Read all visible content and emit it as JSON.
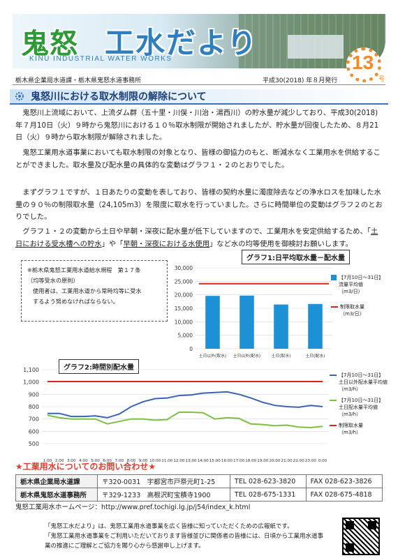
{
  "header": {
    "title_oni": "鬼怒",
    "title_main": "工水だより",
    "subtitle_en": "KINU INDUSTRIAL WATER WORKS",
    "issue_number": "13",
    "issue_unit": "号"
  },
  "meta": {
    "publisher": "栃木県企業局水道課・栃木県鬼怒水道事務所",
    "date": "平成30(2018) 年８月発行"
  },
  "section": {
    "heading": "鬼怒川における取水制限の解除について"
  },
  "paragraphs": {
    "p1": "鬼怒川上流域において、上流ダム群（五十里・川俣・川治・湯西川）の貯水量が減少しており、平成30(2018)年７月10日（火）９時から鬼怒川における１０％取水制限が開始されましたが、貯水量が回復したため、８月21日（火）９時から取水制限が解除されました。",
    "p2": "鬼怒工業用水道事業においても取水制限の対象となり、皆様の御協力のもと、断減水なく工業用水を供給することができました。取水量及び配水量の具体的な変動はグラフ１・２のとおりでした。",
    "p3": "まずグラフ１ですが、１日あたりの変動を表しており、皆様の契約水量に濁度除去などの浄水ロスを加味した水量の９０％の制限取水量（24,105m3）を限度に取水を行っていました。さらに時間単位の変動はグラフ２のとおりでした。",
    "p4_a": "グラフ１・２の変動から土日や早朝・深夜に配水量が低下していますので、工業用水を安定供給するため、「",
    "p4_u1": "土日における受水槽への貯水",
    "p4_b": "」や「",
    "p4_u2": "早朝・深夜における水使用",
    "p4_c": "」など水の均等使用を御検討お願いします。"
  },
  "note": {
    "line1": "※栃木県鬼怒工業用水道給水規程　第１７条",
    "line2": "（均等受水の原則）",
    "line3": "使用者は、工業用水道から常時均等に受水",
    "line4": "するよう努めなければならない。"
  },
  "graph1": {
    "title": "グラフ1:日平均取水量－配水量",
    "legend_bar_1": "【7月10日～31日】",
    "legend_bar_2": "流量平均値",
    "legend_bar_3": "（m3/日）",
    "legend_line_1": "制限取水量",
    "legend_line_2": "（m3/日）"
  },
  "graph2": {
    "title": "グラフ2:時間別配水量",
    "legend_blue_1": "【7月10日～31日】",
    "legend_blue_2": "土日以外配水量平均値",
    "legend_blue_3": "（m3/h）",
    "legend_green_1": "【7月10日～31日】",
    "legend_green_2": "土日配水量平均値",
    "legend_green_3": "（m3/h）",
    "legend_red_1": "制限取水量",
    "legend_red_2": "（m3/h）"
  },
  "chart_data": [
    {
      "type": "bar",
      "title": "グラフ1:日平均取水量－配水量",
      "categories": [
        "土日以外(取水)",
        "土日以外(配水)",
        "土日(取水)",
        "土日(配水)"
      ],
      "series": [
        {
          "name": "【7月10日～31日】流量平均値（m3/日）",
          "values": [
            19600,
            19700,
            16400,
            16600
          ],
          "color": "#1e90d6"
        },
        {
          "name": "制限取水量（m3/日）",
          "values": [
            24105,
            24105,
            24105,
            24105
          ],
          "color": "#d9231d"
        }
      ],
      "ylim": [
        0,
        30000
      ],
      "yticks": [
        "0",
        "5,000",
        "10,000",
        "15,000",
        "20,000",
        "25,000",
        "30,000"
      ],
      "grid": true,
      "legend": "right"
    },
    {
      "type": "line",
      "title": "グラフ2:時間別配水量",
      "x": [
        "1:00",
        "2:00",
        "3:00",
        "4:00",
        "5:00",
        "6:00",
        "7:00",
        "8:00",
        "9:00",
        "10:00",
        "11:00",
        "12:00",
        "13:00",
        "14:00",
        "15:00",
        "16:00",
        "17:00",
        "18:00",
        "19:00",
        "20:00",
        "21:00",
        "22:00",
        "23:00",
        "0:00"
      ],
      "series": [
        {
          "name": "【7月10日～31日】土日以外配水量平均値（m3/h）",
          "color": "#3a64b0",
          "values": [
            745,
            745,
            720,
            720,
            725,
            710,
            740,
            800,
            840,
            865,
            870,
            890,
            895,
            910,
            915,
            920,
            900,
            870,
            835,
            810,
            800,
            795,
            810,
            800
          ]
        },
        {
          "name": "【7月10日～31日】土日配水量平均値（m3/h）",
          "color": "#7bc143",
          "values": [
            730,
            710,
            700,
            700,
            700,
            660,
            680,
            700,
            700,
            690,
            695,
            755,
            755,
            750,
            700,
            710,
            705,
            660,
            655,
            645,
            650,
            635,
            630,
            640
          ]
        },
        {
          "name": "制限取水量（m3/h）",
          "color": "#d9231d",
          "values": [
            1004,
            1004,
            1004,
            1004,
            1004,
            1004,
            1004,
            1004,
            1004,
            1004,
            1004,
            1004,
            1004,
            1004,
            1004,
            1004,
            1004,
            1004,
            1004,
            1004,
            1004,
            1004,
            1004,
            1004
          ]
        }
      ],
      "ylim": [
        500,
        1100
      ],
      "yticks": [
        "500",
        "600",
        "700",
        "800",
        "900",
        "1,000",
        "1,100"
      ],
      "grid": true,
      "legend": "right"
    }
  ],
  "contact": {
    "title_mark": "★",
    "title": "工業用水についてのお問い合わせ",
    "title_end": "★",
    "rows": [
      {
        "org": "栃木県企業局水道課",
        "addr": "〒320-0031　宇都宮市戸祭元町1-25",
        "tel": "TEL 028-623-3820",
        "fax": "FAX 028-623-3826"
      },
      {
        "org": "栃木県鬼怒水道事務所",
        "addr": "〒329-1233　高根沢町宝積寺1900",
        "tel": "TEL 028-675-1331",
        "fax": "FAX 028-675-4818"
      }
    ],
    "homepage": "鬼怒工業用水ホームページ：http://www.pref.tochigi.lg.jp/j54/index_k.html"
  },
  "footer": {
    "line1": "「鬼怒工水だより」は、鬼怒工業用水道事業を広く皆様に知っていただくための広報紙です。",
    "line2": "「鬼怒工業用水道事業をご利用いただいております皆様並びに関係者の皆様には、日頃から工業用水道事業の推進にご理解とご協力を賜り心から感謝申し上げます。"
  }
}
